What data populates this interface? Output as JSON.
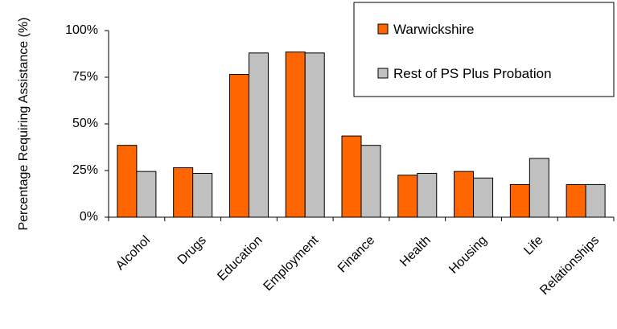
{
  "chart_data": {
    "type": "bar",
    "ylabel": "Percentage Requiring Assistance (%)",
    "xlabel": "",
    "ylim": [
      0,
      100
    ],
    "yticks": [
      "0%",
      "25%",
      "50%",
      "75%",
      "100%"
    ],
    "ytick_values": [
      0,
      25,
      50,
      75,
      100
    ],
    "categories": [
      "Alcohol",
      "Drugs",
      "Education",
      "Employment",
      "Finance",
      "Health",
      "Housing",
      "Life",
      "Relationships"
    ],
    "series": [
      {
        "name": "Warwickshire",
        "color": "#ff6600",
        "values": [
          38.5,
          26.5,
          76.5,
          88.5,
          43.5,
          22.5,
          24.5,
          17.5,
          17.5
        ]
      },
      {
        "name": "Rest of PS Plus Probation",
        "color": "#c0c0c0",
        "values": [
          24.5,
          23.5,
          88,
          88,
          38.5,
          23.5,
          21,
          31.5,
          17.5
        ]
      }
    ],
    "grid": false,
    "legend_position": "top-right"
  }
}
